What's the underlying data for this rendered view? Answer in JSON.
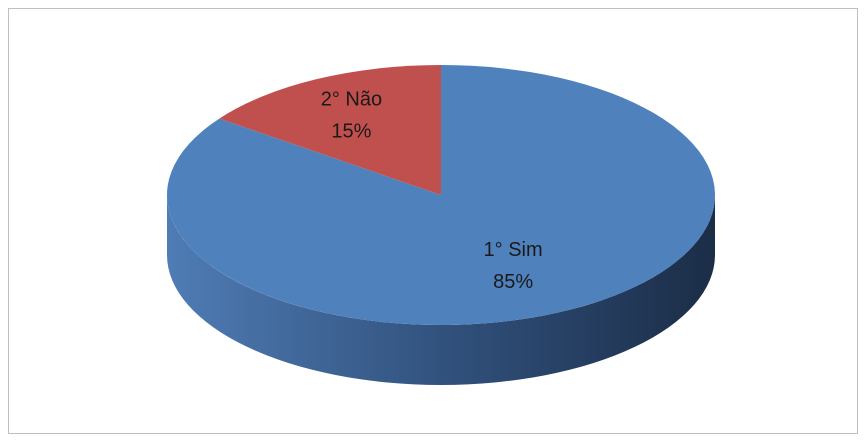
{
  "chart_data": {
    "type": "pie",
    "style": "3d",
    "slices": [
      {
        "name": "1° Sim",
        "value": 85,
        "label": "85%",
        "color": "#4F81BD"
      },
      {
        "name": "2° Não",
        "value": 15,
        "label": "15%",
        "color": "#C0504D"
      }
    ],
    "legend": "none"
  }
}
